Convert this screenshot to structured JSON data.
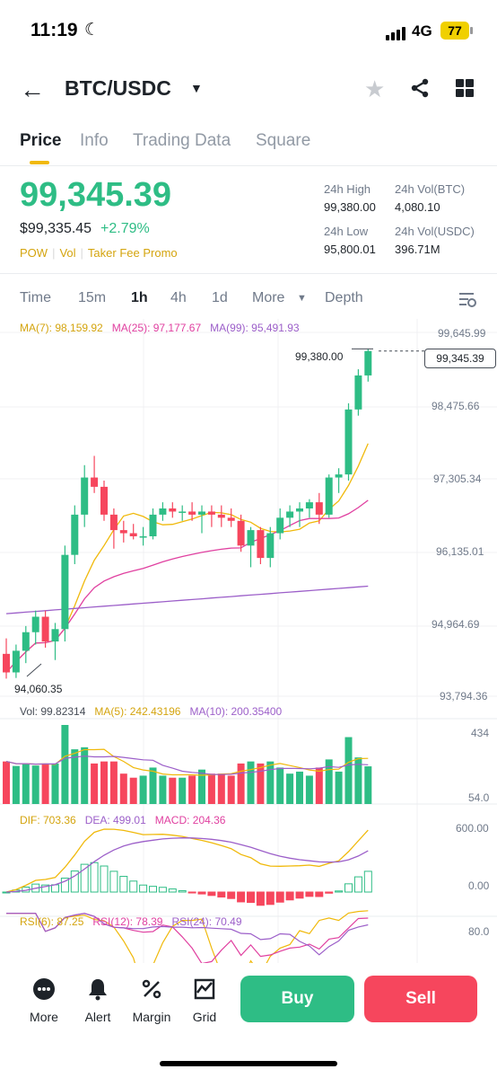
{
  "status_bar": {
    "time": "11:19",
    "network": "4G",
    "battery": "77"
  },
  "header": {
    "pair": "BTC/USDC"
  },
  "tabs": [
    {
      "label": "Price"
    },
    {
      "label": "Info"
    },
    {
      "label": "Trading Data"
    },
    {
      "label": "Square"
    }
  ],
  "ticker": {
    "last_price": "99,345.39",
    "usd_price": "$99,335.45",
    "change": "+2.79%",
    "tags": [
      "POW",
      "Vol",
      "Taker Fee Promo"
    ],
    "stats": {
      "high_label": "24h High",
      "high": "99,380.00",
      "vol_btc_label": "24h Vol(BTC)",
      "vol_btc": "4,080.10",
      "low_label": "24h Low",
      "low": "95,800.01",
      "vol_usdc_label": "24h Vol(USDC)",
      "vol_usdc": "396.71M"
    }
  },
  "intervals": {
    "items": [
      "Time",
      "15m",
      "1h",
      "4h",
      "1d",
      "More"
    ],
    "active": "1h",
    "depth": "Depth"
  },
  "chart": {
    "ma_legend": [
      "MA(7): 98,159.92",
      "MA(25): 97,177.67",
      "MA(99): 95,491.93"
    ],
    "price_axis": [
      "99,645.99",
      "98,475.66",
      "97,305.34",
      "96,135.01",
      "94,964.69",
      "93,794.36"
    ],
    "current_price_tag": "99,345.39",
    "high_marker": "99,380.00",
    "low_marker": "94,060.35",
    "volume_legend": [
      "Vol: 99.82314",
      "MA(5): 242.43196",
      "MA(10): 200.35400"
    ],
    "volume_axis": [
      "434",
      "54.0"
    ],
    "macd_legend": [
      "DIF: 703.36",
      "DEA: 499.01",
      "MACD: 204.36"
    ],
    "macd_axis": [
      "600.00",
      "0.00"
    ],
    "rsi_legend": [
      "RSI(6): 87.25",
      "RSI(12): 78.39",
      "RSI(24): 70.49"
    ],
    "rsi_axis": [
      "80.0"
    ],
    "colors": {
      "up": "#2ebd85",
      "down": "#f6465d",
      "ma7": "#f0b90b",
      "ma25": "#e040a0",
      "ma99": "#9c5fc9"
    }
  },
  "chart_data": {
    "type": "candlestick",
    "interval": "1h",
    "ylim": [
      93794.36,
      99645.99
    ],
    "candles": [
      {
        "o": 94450,
        "h": 94700,
        "l": 94050,
        "c": 94150
      },
      {
        "o": 94150,
        "h": 94600,
        "l": 94060.35,
        "c": 94500
      },
      {
        "o": 94500,
        "h": 94900,
        "l": 94300,
        "c": 94800
      },
      {
        "o": 94800,
        "h": 95150,
        "l": 94600,
        "c": 95050
      },
      {
        "o": 95050,
        "h": 95150,
        "l": 94550,
        "c": 94650
      },
      {
        "o": 94650,
        "h": 94950,
        "l": 94350,
        "c": 94850
      },
      {
        "o": 94850,
        "h": 96200,
        "l": 94650,
        "c": 96050
      },
      {
        "o": 96050,
        "h": 96850,
        "l": 95900,
        "c": 96700
      },
      {
        "o": 96700,
        "h": 97500,
        "l": 96500,
        "c": 97300
      },
      {
        "o": 97300,
        "h": 97650,
        "l": 97050,
        "c": 97150
      },
      {
        "o": 97150,
        "h": 97250,
        "l": 96600,
        "c": 96700
      },
      {
        "o": 96700,
        "h": 96800,
        "l": 96150,
        "c": 96450
      },
      {
        "o": 96450,
        "h": 96600,
        "l": 96250,
        "c": 96400
      },
      {
        "o": 96400,
        "h": 96550,
        "l": 96300,
        "c": 96350
      },
      {
        "o": 96350,
        "h": 96500,
        "l": 96200,
        "c": 96350
      },
      {
        "o": 96350,
        "h": 96800,
        "l": 96300,
        "c": 96700
      },
      {
        "o": 96700,
        "h": 96900,
        "l": 96600,
        "c": 96800
      },
      {
        "o": 96800,
        "h": 96900,
        "l": 96650,
        "c": 96750
      },
      {
        "o": 96750,
        "h": 96850,
        "l": 96600,
        "c": 96750
      },
      {
        "o": 96750,
        "h": 96900,
        "l": 96600,
        "c": 96700
      },
      {
        "o": 96700,
        "h": 96850,
        "l": 96400,
        "c": 96750
      },
      {
        "o": 96750,
        "h": 96850,
        "l": 96500,
        "c": 96700
      },
      {
        "o": 96700,
        "h": 96850,
        "l": 96500,
        "c": 96650
      },
      {
        "o": 96650,
        "h": 96800,
        "l": 96500,
        "c": 96600
      },
      {
        "o": 96600,
        "h": 96700,
        "l": 96100,
        "c": 96200
      },
      {
        "o": 96200,
        "h": 96500,
        "l": 95850,
        "c": 96450
      },
      {
        "o": 96450,
        "h": 96500,
        "l": 95900,
        "c": 96000
      },
      {
        "o": 96000,
        "h": 96500,
        "l": 95850,
        "c": 96400
      },
      {
        "o": 96400,
        "h": 96800,
        "l": 96300,
        "c": 96650
      },
      {
        "o": 96650,
        "h": 96850,
        "l": 96500,
        "c": 96750
      },
      {
        "o": 96750,
        "h": 96900,
        "l": 96500,
        "c": 96800
      },
      {
        "o": 96800,
        "h": 96950,
        "l": 96650,
        "c": 96900
      },
      {
        "o": 96900,
        "h": 97050,
        "l": 96550,
        "c": 96700
      },
      {
        "o": 96700,
        "h": 97350,
        "l": 96650,
        "c": 97300
      },
      {
        "o": 97300,
        "h": 97450,
        "l": 97050,
        "c": 97350
      },
      {
        "o": 97350,
        "h": 98500,
        "l": 97250,
        "c": 98400
      },
      {
        "o": 98400,
        "h": 99050,
        "l": 98300,
        "c": 98950
      },
      {
        "o": 98950,
        "h": 99380,
        "l": 98850,
        "c": 99345.39
      }
    ]
  },
  "bottom_bar": {
    "items": [
      {
        "label": "More"
      },
      {
        "label": "Alert"
      },
      {
        "label": "Margin"
      },
      {
        "label": "Grid"
      }
    ],
    "buy": "Buy",
    "sell": "Sell"
  }
}
